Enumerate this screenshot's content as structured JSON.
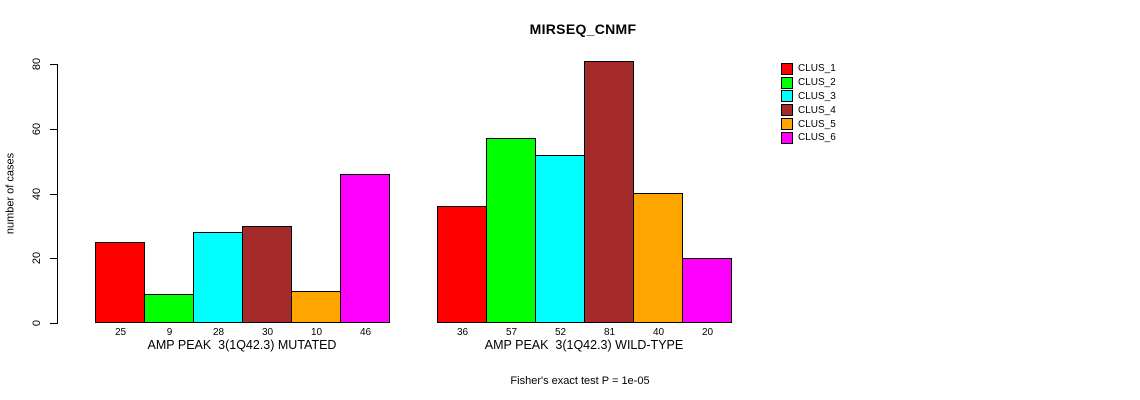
{
  "chart_data": {
    "type": "bar",
    "title": "MIRSEQ_CNMF",
    "ylabel": "number of cases",
    "xlabel": "",
    "yticks": [
      0,
      20,
      40,
      60,
      80
    ],
    "axis_range": [
      0,
      80
    ],
    "grid": false,
    "legend_position": "right",
    "bar_borders": "black",
    "categories": [
      "AMP PEAK  3(1Q42.3) MUTATED",
      "AMP PEAK  3(1Q42.3) WILD-TYPE"
    ],
    "series": [
      {
        "name": "CLUS_1",
        "color": "#FF0000",
        "values": [
          25,
          36
        ]
      },
      {
        "name": "CLUS_2",
        "color": "#00FF00",
        "values": [
          9,
          57
        ]
      },
      {
        "name": "CLUS_3",
        "color": "#00FFFF",
        "values": [
          28,
          52
        ]
      },
      {
        "name": "CLUS_4",
        "color": "#A52A2A",
        "values": [
          30,
          81
        ]
      },
      {
        "name": "CLUS_5",
        "color": "#FFA500",
        "values": [
          10,
          40
        ]
      },
      {
        "name": "CLUS_6",
        "color": "#FF00FF",
        "values": [
          46,
          20
        ]
      }
    ],
    "bar_value_labels": {
      "group_1": [
        25,
        9,
        28,
        30,
        10,
        46
      ],
      "group_2": [
        36,
        57,
        52,
        81,
        40,
        20
      ]
    },
    "footnote": "Fisher's exact test P = 1e-05"
  }
}
